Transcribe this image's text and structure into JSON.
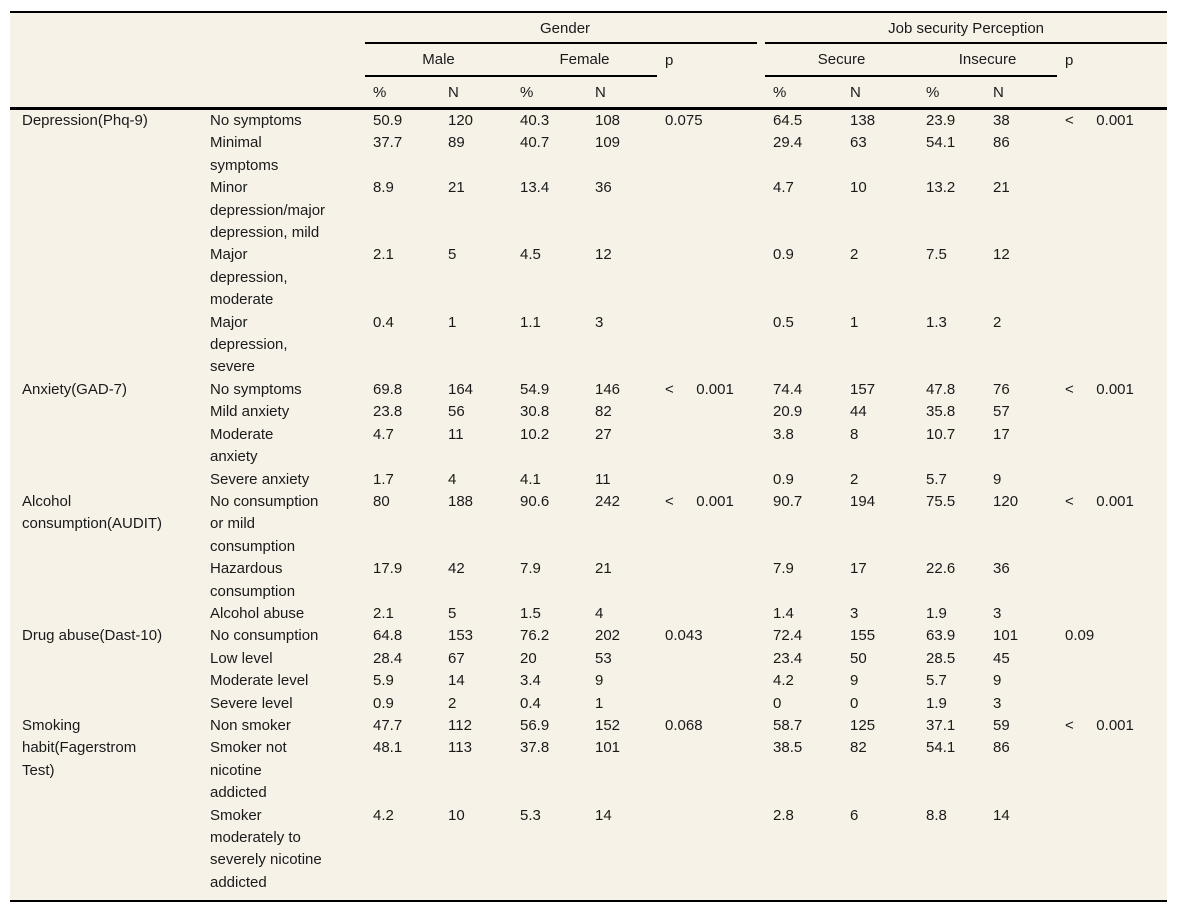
{
  "table": {
    "header": {
      "group1": "Gender",
      "group2": "Job security Perception",
      "subheaders": [
        "Male",
        "Female",
        "p",
        "Secure",
        "Insecure",
        "p"
      ],
      "measure_headers": [
        "%",
        "N",
        "%",
        "N",
        "%",
        "N",
        "%",
        "N"
      ]
    },
    "blocks": [
      {
        "category": "Depression(Phq-9)",
        "rows": [
          {
            "label": "No symptoms",
            "m_pct": "50.9",
            "m_n": "120",
            "f_pct": "40.3",
            "f_n": "108",
            "p1": "0.075",
            "s_pct": "64.5",
            "s_n": "138",
            "i_pct": "23.9",
            "i_n": "38",
            "p2": "<  0.001"
          },
          {
            "label": "Minimal\nsymptoms",
            "m_pct": "37.7",
            "m_n": "89",
            "f_pct": "40.7",
            "f_n": "109",
            "s_pct": "29.4",
            "s_n": "63",
            "i_pct": "54.1",
            "i_n": "86"
          },
          {
            "label": "Minor\ndepression/major\ndepression, mild",
            "m_pct": "8.9",
            "m_n": "21",
            "f_pct": "13.4",
            "f_n": "36",
            "s_pct": "4.7",
            "s_n": "10",
            "i_pct": "13.2",
            "i_n": "21"
          },
          {
            "label": "Major\ndepression,\nmoderate",
            "m_pct": "2.1",
            "m_n": "5",
            "f_pct": "4.5",
            "f_n": "12",
            "s_pct": "0.9",
            "s_n": "2",
            "i_pct": "7.5",
            "i_n": "12"
          },
          {
            "label": "Major\ndepression,\nsevere",
            "m_pct": "0.4",
            "m_n": "1",
            "f_pct": "1.1",
            "f_n": "3",
            "s_pct": "0.5",
            "s_n": "1",
            "i_pct": "1.3",
            "i_n": "2"
          }
        ]
      },
      {
        "category": "Anxiety(GAD-7)",
        "rows": [
          {
            "label": "No symptoms",
            "m_pct": "69.8",
            "m_n": "164",
            "f_pct": "54.9",
            "f_n": "146",
            "p1": "<  0.001",
            "s_pct": "74.4",
            "s_n": "157",
            "i_pct": "47.8",
            "i_n": "76",
            "p2": "<  0.001"
          },
          {
            "label": "Mild anxiety",
            "m_pct": "23.8",
            "m_n": "56",
            "f_pct": "30.8",
            "f_n": "82",
            "s_pct": "20.9",
            "s_n": "44",
            "i_pct": "35.8",
            "i_n": "57"
          },
          {
            "label": "Moderate\nanxiety",
            "m_pct": "4.7",
            "m_n": "11",
            "f_pct": "10.2",
            "f_n": "27",
            "s_pct": "3.8",
            "s_n": "8",
            "i_pct": "10.7",
            "i_n": "17"
          },
          {
            "label": "Severe anxiety",
            "m_pct": "1.7",
            "m_n": "4",
            "f_pct": "4.1",
            "f_n": "11",
            "s_pct": "0.9",
            "s_n": "2",
            "i_pct": "5.7",
            "i_n": "9"
          }
        ]
      },
      {
        "category": "Alcohol\nconsumption(AUDIT)",
        "rows": [
          {
            "label": "No consumption\nor mild\nconsumption",
            "m_pct": "80",
            "m_n": "188",
            "f_pct": "90.6",
            "f_n": "242",
            "p1": "<  0.001",
            "s_pct": "90.7",
            "s_n": "194",
            "i_pct": "75.5",
            "i_n": "120",
            "p2": "<  0.001"
          },
          {
            "label": "Hazardous\nconsumption",
            "m_pct": "17.9",
            "m_n": "42",
            "f_pct": "7.9",
            "f_n": "21",
            "s_pct": "7.9",
            "s_n": "17",
            "i_pct": "22.6",
            "i_n": "36"
          },
          {
            "label": "Alcohol abuse",
            "m_pct": "2.1",
            "m_n": "5",
            "f_pct": "1.5",
            "f_n": "4",
            "s_pct": "1.4",
            "s_n": "3",
            "i_pct": "1.9",
            "i_n": "3"
          }
        ]
      },
      {
        "category": "Drug abuse(Dast-10)",
        "rows": [
          {
            "label": "No consumption",
            "m_pct": "64.8",
            "m_n": "153",
            "f_pct": "76.2",
            "f_n": "202",
            "p1": "0.043",
            "s_pct": "72.4",
            "s_n": "155",
            "i_pct": "63.9",
            "i_n": "101",
            "p2": "0.09"
          },
          {
            "label": "Low level",
            "m_pct": "28.4",
            "m_n": "67",
            "f_pct": "20",
            "f_n": "53",
            "s_pct": "23.4",
            "s_n": "50",
            "i_pct": "28.5",
            "i_n": "45"
          },
          {
            "label": "Moderate level",
            "m_pct": "5.9",
            "m_n": "14",
            "f_pct": "3.4",
            "f_n": "9",
            "s_pct": "4.2",
            "s_n": "9",
            "i_pct": "5.7",
            "i_n": "9"
          },
          {
            "label": "Severe level",
            "m_pct": "0.9",
            "m_n": "2",
            "f_pct": "0.4",
            "f_n": "1",
            "s_pct": "0",
            "s_n": "0",
            "i_pct": "1.9",
            "i_n": "3"
          }
        ]
      },
      {
        "category": "Smoking\nhabit(Fagerstrom\nTest)",
        "rows": [
          {
            "label": "Non smoker",
            "m_pct": "47.7",
            "m_n": "112",
            "f_pct": "56.9",
            "f_n": "152",
            "p1": "0.068",
            "s_pct": "58.7",
            "s_n": "125",
            "i_pct": "37.1",
            "i_n": "59",
            "p2": "<  0.001"
          },
          {
            "label": "Smoker not\nnicotine\naddicted",
            "m_pct": "48.1",
            "m_n": "113",
            "f_pct": "37.8",
            "f_n": "101",
            "s_pct": "38.5",
            "s_n": "82",
            "i_pct": "54.1",
            "i_n": "86"
          },
          {
            "label": "Smoker\nmoderately to\nseverely nicotine\naddicted",
            "m_pct": "4.2",
            "m_n": "10",
            "f_pct": "5.3",
            "f_n": "14",
            "s_pct": "2.8",
            "s_n": "6",
            "i_pct": "8.8",
            "i_n": "14"
          }
        ]
      }
    ]
  }
}
